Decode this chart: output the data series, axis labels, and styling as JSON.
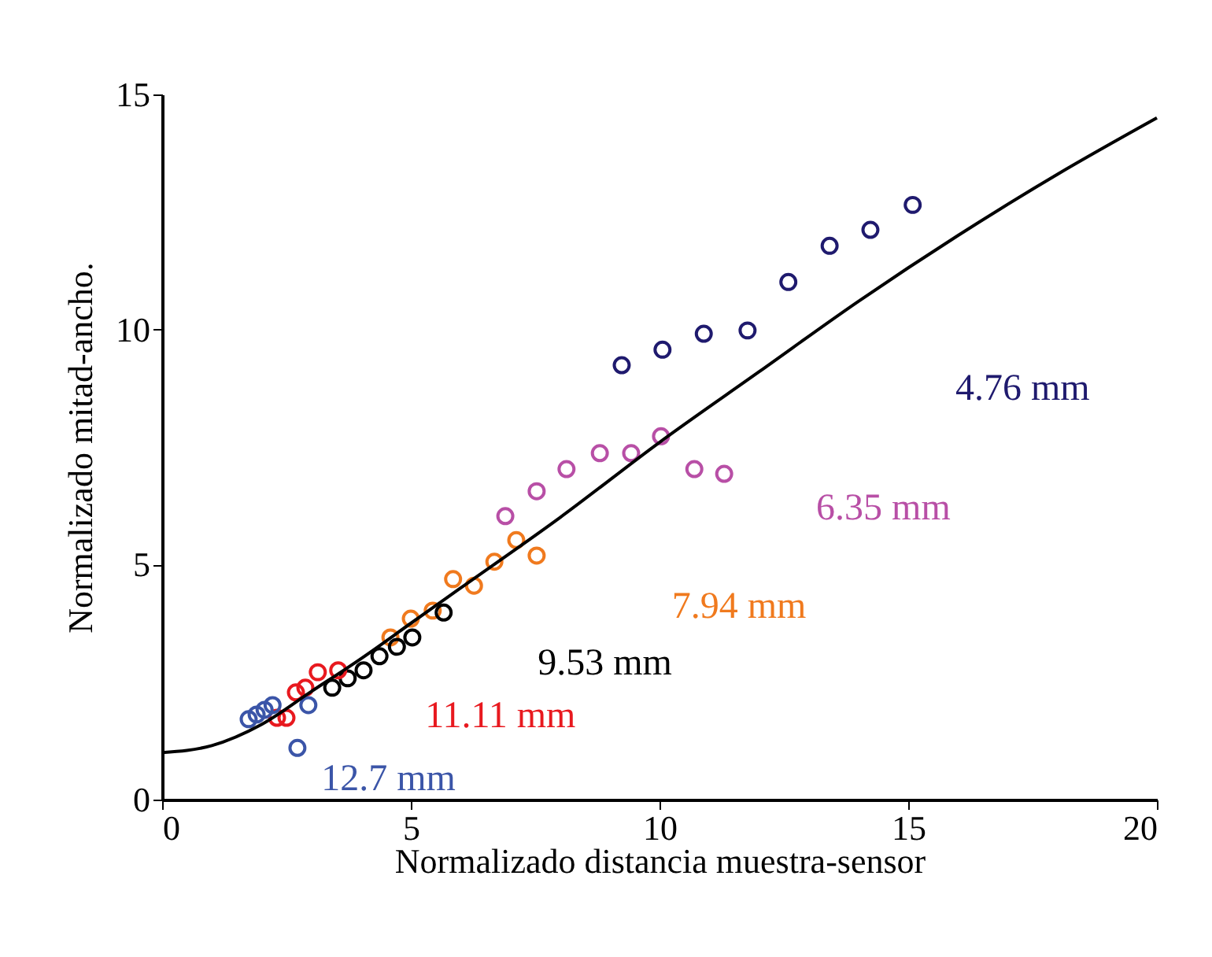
{
  "chart_data": {
    "type": "scatter",
    "xlabel": "Normalizado distancia muestra-sensor",
    "ylabel": "Normalizado mitad-ancho.",
    "xlim": [
      0,
      20
    ],
    "xticks": [
      0,
      5,
      10,
      15,
      20
    ],
    "ylim": [
      0,
      15
    ],
    "yticks": [
      0,
      5,
      10,
      15
    ],
    "grid": false,
    "marker": "circle",
    "series": [
      {
        "name": "4.76 mm",
        "color": "#1f1a6e",
        "x": [
          9.24,
          10.06,
          10.89,
          11.77,
          12.59,
          13.42,
          14.24,
          15.09
        ],
        "values": [
          9.24,
          9.57,
          9.91,
          9.98,
          11.01,
          11.78,
          12.12,
          12.65
        ]
      },
      {
        "name": "6.35 mm",
        "color": "#b84fa6",
        "x": [
          6.9,
          7.53,
          8.13,
          8.8,
          9.43,
          10.03,
          10.7,
          11.3
        ],
        "values": [
          6.03,
          6.56,
          7.03,
          7.37,
          7.37,
          7.73,
          7.03,
          6.93
        ]
      },
      {
        "name": "7.94 mm",
        "color": "#f07a1e",
        "x": [
          4.59,
          5.0,
          5.44,
          5.85,
          6.27,
          6.68,
          7.12,
          7.53
        ],
        "values": [
          3.45,
          3.85,
          4.02,
          4.69,
          4.55,
          5.06,
          5.52,
          5.19
        ]
      },
      {
        "name": "9.53 mm",
        "color": "#000000",
        "x": [
          3.42,
          3.73,
          4.05,
          4.37,
          4.72,
          5.03,
          5.66
        ],
        "values": [
          2.38,
          2.58,
          2.75,
          3.05,
          3.25,
          3.45,
          3.98
        ]
      },
      {
        "name": "11.11 mm",
        "color": "#e8191f",
        "x": [
          2.31,
          2.5,
          2.69,
          2.88,
          3.13,
          3.54
        ],
        "values": [
          1.74,
          1.74,
          2.28,
          2.38,
          2.71,
          2.75
        ]
      },
      {
        "name": "12.7 mm",
        "color": "#3b55a8",
        "x": [
          1.74,
          1.9,
          2.06,
          2.22,
          2.94,
          2.72
        ],
        "values": [
          1.71,
          1.81,
          1.91,
          2.01,
          2.01,
          1.1
        ]
      },
      {
        "type": "line",
        "color": "#000000",
        "line_style": "solid",
        "marker": "none",
        "x": [
          0,
          1,
          2,
          3,
          4,
          5,
          6,
          8,
          10,
          12,
          14,
          16,
          18,
          20
        ],
        "values": [
          1,
          1.15,
          1.6,
          2.3,
          3.0,
          3.75,
          4.5,
          6.0,
          7.6,
          9.1,
          10.6,
          12.0,
          13.3,
          14.5
        ]
      }
    ]
  }
}
